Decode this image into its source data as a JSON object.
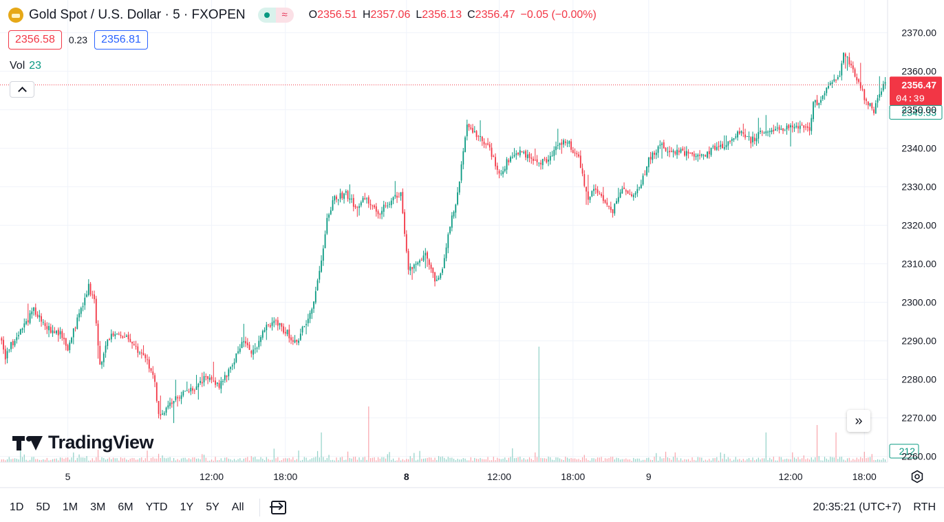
{
  "header": {
    "symbol_title": "Gold Spot / U.S. Dollar · 5 · FXOPEN",
    "ohlc": [
      {
        "key": "O",
        "value": "2356.51"
      },
      {
        "key": "H",
        "value": "2357.06"
      },
      {
        "key": "L",
        "value": "2356.13"
      },
      {
        "key": "C",
        "value": "2356.47"
      }
    ],
    "change": "−0.05 (−0.00%)",
    "bid": "2356.58",
    "spread": "0.23",
    "ask": "2356.81",
    "volume_label": "Vol",
    "volume_value": "23"
  },
  "branding": {
    "logo_text": "TradingView"
  },
  "bottom_bar": {
    "ranges": [
      "1D",
      "5D",
      "1M",
      "3M",
      "6M",
      "YTD",
      "1Y",
      "5Y",
      "All"
    ],
    "clock": "20:35:21 (UTC+7)",
    "session": "RTH"
  },
  "colors": {
    "up": "#089981",
    "down": "#f23645",
    "accent": "#2962ff",
    "gold": "#e6a817"
  },
  "chart_data": {
    "type": "candlestick",
    "interval": "5",
    "y_ticks": [
      "2260.00",
      "2270.00",
      "2280.00",
      "2290.00",
      "2300.00",
      "2310.00",
      "2320.00",
      "2330.00",
      "2340.00",
      "2350.00",
      "2360.00",
      "2370.00"
    ],
    "ylim": [
      2258.5,
      2373.5
    ],
    "x_ticks": [
      {
        "label": "5",
        "bold": false,
        "bar": 35
      },
      {
        "label": "12:00",
        "bold": false,
        "bar": 111
      },
      {
        "label": "18:00",
        "bold": false,
        "bar": 150
      },
      {
        "label": "8",
        "bold": true,
        "bar": 214
      },
      {
        "label": "12:00",
        "bold": false,
        "bar": 263
      },
      {
        "label": "18:00",
        "bold": false,
        "bar": 302
      },
      {
        "label": "9",
        "bold": false,
        "bar": 342
      },
      {
        "label": "12:00",
        "bold": false,
        "bar": 417
      },
      {
        "label": "18:00",
        "bold": false,
        "bar": 456
      }
    ],
    "last_price": {
      "value": 2356.47,
      "label": "2356.47",
      "countdown": "04:39"
    },
    "reference_price": {
      "value": 2349.33,
      "label": "2349.33"
    },
    "volume_marker": {
      "label": "212"
    },
    "anchors": [
      [
        0,
        2291
      ],
      [
        3,
        2286
      ],
      [
        6,
        2289
      ],
      [
        12,
        2293
      ],
      [
        18,
        2298
      ],
      [
        22,
        2295
      ],
      [
        27,
        2293
      ],
      [
        32,
        2292
      ],
      [
        36,
        2288
      ],
      [
        42,
        2297
      ],
      [
        47,
        2304
      ],
      [
        50,
        2300
      ],
      [
        53,
        2284
      ],
      [
        58,
        2291
      ],
      [
        64,
        2292
      ],
      [
        70,
        2289
      ],
      [
        77,
        2286
      ],
      [
        82,
        2279
      ],
      [
        84,
        2271
      ],
      [
        88,
        2272
      ],
      [
        95,
        2276
      ],
      [
        103,
        2278
      ],
      [
        110,
        2281
      ],
      [
        116,
        2278
      ],
      [
        122,
        2283
      ],
      [
        128,
        2290
      ],
      [
        134,
        2287
      ],
      [
        141,
        2294
      ],
      [
        146,
        2295
      ],
      [
        152,
        2292
      ],
      [
        157,
        2289
      ],
      [
        161,
        2294
      ],
      [
        166,
        2300
      ],
      [
        170,
        2310
      ],
      [
        173,
        2322
      ],
      [
        177,
        2327
      ],
      [
        183,
        2328
      ],
      [
        188,
        2325
      ],
      [
        193,
        2327
      ],
      [
        200,
        2323
      ],
      [
        206,
        2326
      ],
      [
        212,
        2328
      ],
      [
        216,
        2308
      ],
      [
        220,
        2310
      ],
      [
        225,
        2312
      ],
      [
        230,
        2306
      ],
      [
        234,
        2308
      ],
      [
        238,
        2320
      ],
      [
        242,
        2328
      ],
      [
        245,
        2340
      ],
      [
        247,
        2347
      ],
      [
        252,
        2343
      ],
      [
        258,
        2341
      ],
      [
        264,
        2333
      ],
      [
        270,
        2338
      ],
      [
        276,
        2339
      ],
      [
        283,
        2336
      ],
      [
        290,
        2337
      ],
      [
        296,
        2341
      ],
      [
        300,
        2342
      ],
      [
        306,
        2337
      ],
      [
        311,
        2327
      ],
      [
        315,
        2330
      ],
      [
        320,
        2325
      ],
      [
        324,
        2324
      ],
      [
        329,
        2329
      ],
      [
        334,
        2327
      ],
      [
        339,
        2331
      ],
      [
        343,
        2337
      ],
      [
        349,
        2341
      ],
      [
        356,
        2339
      ],
      [
        363,
        2339
      ],
      [
        371,
        2338
      ],
      [
        378,
        2340
      ],
      [
        385,
        2341
      ],
      [
        391,
        2344
      ],
      [
        397,
        2342
      ],
      [
        403,
        2344
      ],
      [
        410,
        2345
      ],
      [
        416,
        2345
      ],
      [
        422,
        2346
      ],
      [
        428,
        2345
      ],
      [
        430,
        2352
      ],
      [
        434,
        2352
      ],
      [
        439,
        2357
      ],
      [
        444,
        2359
      ],
      [
        446,
        2364
      ],
      [
        450,
        2362
      ],
      [
        454,
        2357
      ],
      [
        458,
        2352
      ],
      [
        462,
        2350
      ],
      [
        464,
        2353
      ],
      [
        467,
        2356.5
      ]
    ],
    "volume_spikes": [
      [
        284,
        30
      ],
      [
        194,
        15
      ],
      [
        169,
        8
      ],
      [
        431,
        10
      ],
      [
        441,
        8
      ],
      [
        404,
        8
      ]
    ]
  }
}
